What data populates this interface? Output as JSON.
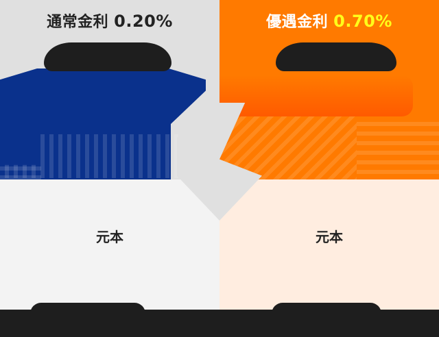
{
  "left_panel": {
    "rate_label": "通常金利",
    "rate_value": "0.20%",
    "principal_label": "元本",
    "colors": {
      "header_bg": "#e0e0e0",
      "interest_bg": "#0a318c",
      "principal_bg": "#f3f3f3"
    }
  },
  "right_panel": {
    "rate_label": "優遇金利",
    "rate_value": "0.70%",
    "principal_label": "元本",
    "colors": {
      "header_bg": "#ff7a00",
      "interest_bg": "#ff6a00",
      "principal_bg": "#ffede0",
      "rate_value": "#ffff1a"
    }
  },
  "center": {
    "icon": "arrow-comparison"
  }
}
